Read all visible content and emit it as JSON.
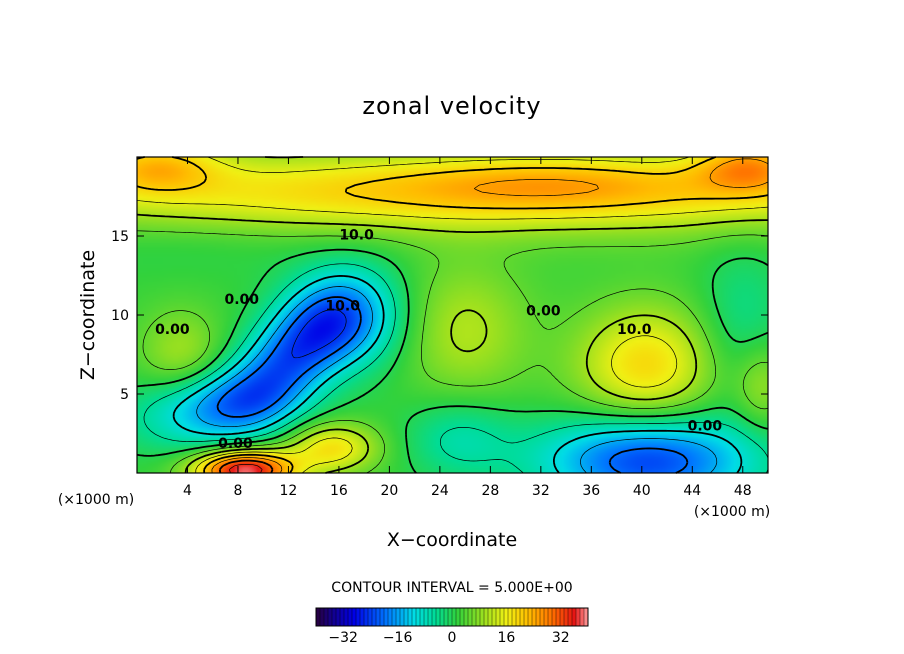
{
  "chart_data": {
    "type": "heatmap",
    "title": "zonal velocity",
    "xlabel": "X−coordinate",
    "ylabel": "Z−coordinate",
    "x_unit_left": "(×1000 m)",
    "x_unit_right": "(×1000 m)",
    "xlim": [
      0,
      50
    ],
    "ylim": [
      0,
      20
    ],
    "x_ticks": [
      4,
      8,
      12,
      16,
      20,
      24,
      28,
      32,
      36,
      40,
      44,
      48
    ],
    "x_tick_labels": [
      "4",
      "8",
      "12",
      "16",
      "20",
      "24",
      "28",
      "32",
      "36",
      "40",
      "44",
      "48"
    ],
    "y_ticks": [
      5,
      10,
      15
    ],
    "y_tick_labels": [
      "5",
      "10",
      "15"
    ],
    "contour_interval_text": "CONTOUR INTERVAL = 5.000E+00",
    "contour_interval": 5,
    "colorbar": {
      "range": [
        -40,
        40
      ],
      "ticks": [
        -32,
        -16,
        0,
        16,
        32
      ],
      "tick_labels": [
        "−32",
        "−16",
        "0",
        "16",
        "32"
      ]
    },
    "contour_labels": [
      {
        "text": "10.0",
        "x": 17.4,
        "z": 15.1
      },
      {
        "text": "0.00",
        "x": 8.3,
        "z": 11.0
      },
      {
        "text": "10.0",
        "x": 16.3,
        "z": 10.6
      },
      {
        "text": "0.00",
        "x": 2.8,
        "z": 9.1
      },
      {
        "text": "0.00",
        "x": 32.2,
        "z": 10.3
      },
      {
        "text": "10.0",
        "x": 39.4,
        "z": 9.1
      },
      {
        "text": "0.00",
        "x": 45.0,
        "z": 3.0
      },
      {
        "text": "0.00",
        "x": 7.8,
        "z": 1.9
      }
    ],
    "field_features": [
      {
        "name": "background",
        "value": 2
      },
      {
        "name": "upper-jet",
        "x": 28,
        "z": 17.8,
        "sx": 28,
        "sz": 1.8,
        "value": 19
      },
      {
        "name": "upper-left-max",
        "x": 1.5,
        "z": 19.5,
        "sx": 3.5,
        "sz": 1.2,
        "value": 14
      },
      {
        "name": "upper-right-max",
        "x": 48.5,
        "z": 19.5,
        "sx": 3.0,
        "sz": 1.2,
        "value": 16
      },
      {
        "name": "upper-mid-max",
        "x": 33,
        "z": 18.5,
        "sx": 8,
        "sz": 1.2,
        "value": 6
      },
      {
        "name": "left-low-z",
        "x": 4,
        "z": 14.5,
        "sx": 9,
        "sz": 1.4,
        "value": -2
      },
      {
        "name": "left-blob",
        "x": 3.5,
        "z": 7.5,
        "sx": 2.3,
        "sz": 2.0,
        "value": 8
      },
      {
        "name": "central-low-1",
        "x": 12.0,
        "z": 7.2,
        "sx": 4.0,
        "sz": 2.0,
        "rot": 33,
        "value": -22
      },
      {
        "name": "central-low-2",
        "x": 16.5,
        "z": 9.8,
        "sx": 3.2,
        "sz": 2.2,
        "value": -18
      },
      {
        "name": "mid-high",
        "x": 26,
        "z": 9.0,
        "sx": 3.5,
        "sz": 3.0,
        "value": 9
      },
      {
        "name": "right-high",
        "x": 40.3,
        "z": 6.8,
        "sx": 3.8,
        "sz": 2.6,
        "value": 17
      },
      {
        "name": "far-right-low",
        "x": 48,
        "z": 9.5,
        "sx": 2.5,
        "sz": 3.5,
        "value": -6
      },
      {
        "name": "lower-mid-low",
        "x": 25.5,
        "z": 2.2,
        "sx": 3.0,
        "sz": 1.8,
        "value": -8
      },
      {
        "name": "bottom-right-low",
        "x": 40.5,
        "z": 0.8,
        "sx": 6.0,
        "sz": 2.0,
        "value": -26
      },
      {
        "name": "bottom-jet",
        "x": 8.5,
        "z": 0.2,
        "sx": 2.8,
        "sz": 0.9,
        "value": 38
      },
      {
        "name": "bottom-high",
        "x": 15.5,
        "z": 1.6,
        "sx": 2.5,
        "sz": 1.1,
        "value": 16
      },
      {
        "name": "bottom-left-low",
        "x": 3.5,
        "z": 3.0,
        "sx": 4.0,
        "sz": 1.5,
        "value": -6
      },
      {
        "name": "lower-left-low",
        "x": 7.0,
        "z": 4.5,
        "sx": 4.0,
        "sz": 1.5,
        "value": -14
      },
      {
        "name": "right-edge-high",
        "x": 49.5,
        "z": 5.5,
        "sx": 1.5,
        "sz": 2.0,
        "value": 8
      }
    ]
  }
}
